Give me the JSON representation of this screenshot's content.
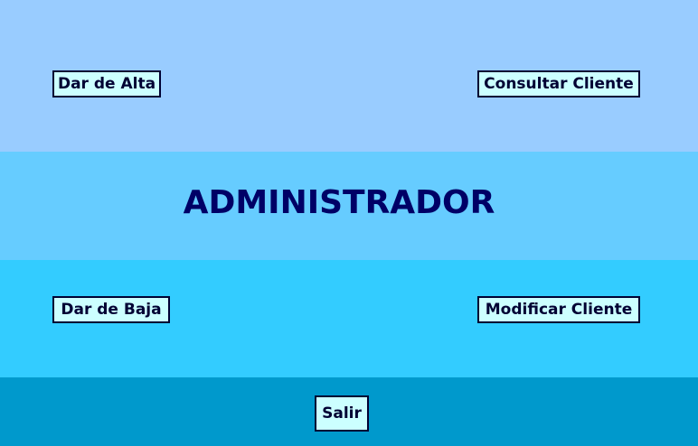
{
  "title": "ADMINISTRADOR",
  "buttons": {
    "alta": "Dar de Alta",
    "consultar": "Consultar Cliente",
    "baja": "Dar de Baja",
    "modificar": "Modificar Cliente",
    "salir": "Salir"
  },
  "colors": {
    "band_top": "#99ccff",
    "band_title": "#66ccff",
    "band_mid": "#33ccff",
    "band_bottom": "#0099cc",
    "button_bg": "#ccffff",
    "title_text": "#000066"
  }
}
